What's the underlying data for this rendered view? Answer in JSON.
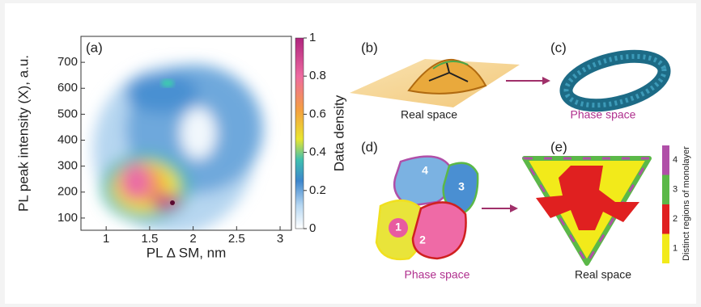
{
  "panel_a": {
    "label": "(a)",
    "x_axis": {
      "title": "PL Δ SM, nm",
      "lim": [
        0.71,
        3.13
      ],
      "ticks": [
        1,
        1.5,
        2,
        2.5,
        3
      ]
    },
    "y_axis": {
      "title": "PL peak intensity (X), a.u.",
      "lim": [
        53,
        800
      ],
      "ticks": [
        100,
        200,
        300,
        400,
        500,
        600,
        700
      ]
    },
    "colorbar": {
      "title": "Data density",
      "lim": [
        0,
        1
      ],
      "ticks": [
        0,
        0.2,
        0.4,
        0.6,
        0.8,
        1
      ]
    }
  },
  "panel_b": {
    "label": "(b)",
    "caption": "Real space"
  },
  "panel_c": {
    "label": "(c)",
    "caption": "Phase space"
  },
  "panel_d": {
    "label": "(d)",
    "caption": "Phase space",
    "regions": [
      "1",
      "2",
      "3",
      "4"
    ]
  },
  "panel_e": {
    "label": "(e)",
    "caption": "Real space",
    "colorbar": {
      "title": "Distinct regions of monolayer",
      "lim": [
        0.5,
        4.5
      ],
      "ticks": [
        1,
        2,
        3,
        4
      ],
      "colors": [
        "#f2ea1a",
        "#e02020",
        "#5bb848",
        "#b04fa8"
      ]
    }
  }
}
